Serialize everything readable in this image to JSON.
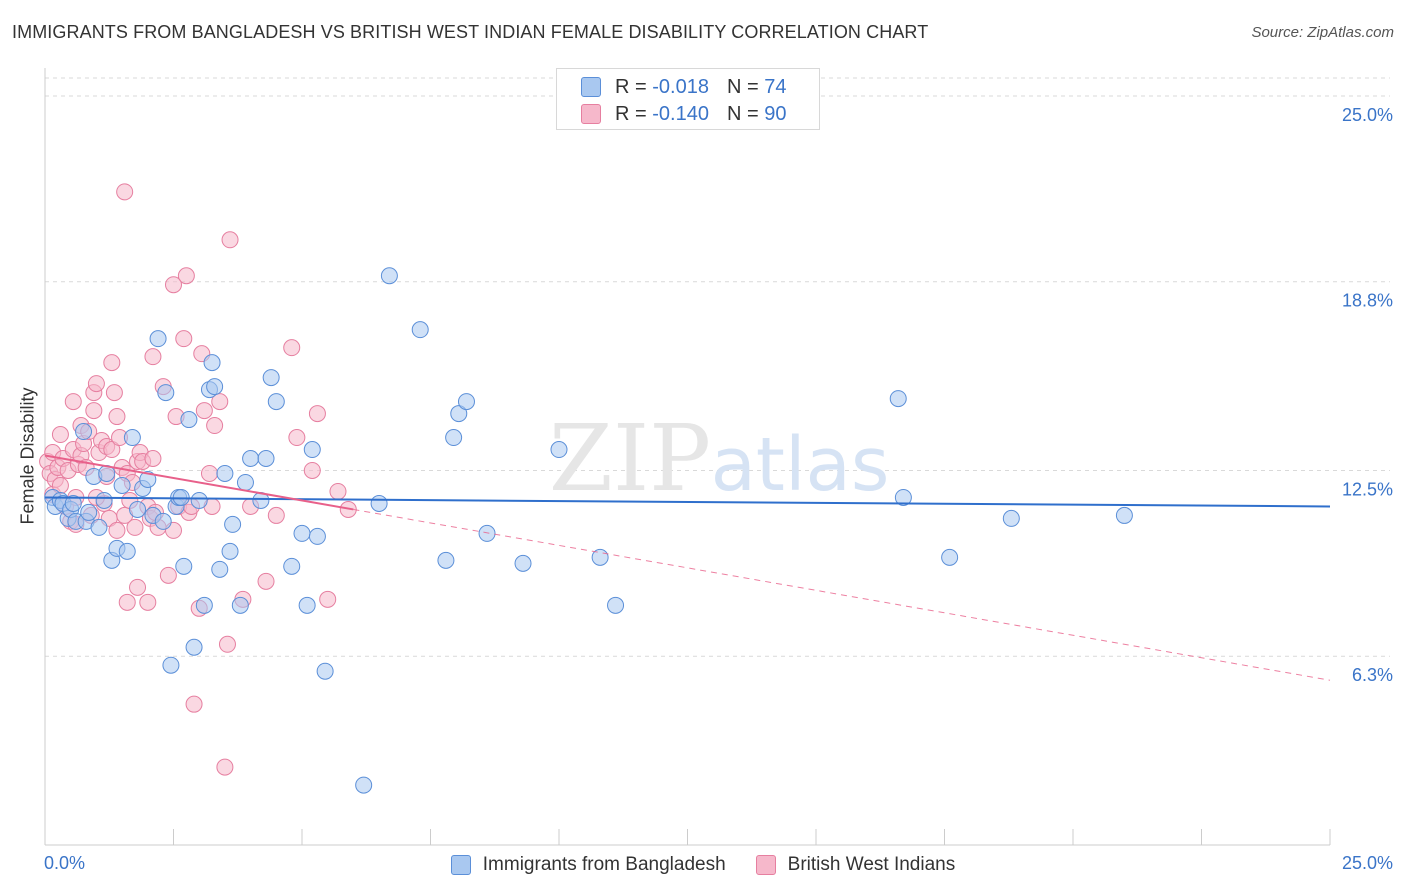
{
  "title": "IMMIGRANTS FROM BANGLADESH VS BRITISH WEST INDIAN FEMALE DISABILITY CORRELATION CHART",
  "source": "Source: ZipAtlas.com",
  "watermark": {
    "zip": "ZIP",
    "atlas": "atlas"
  },
  "colors": {
    "blue_fill": "#a9c8f0",
    "blue_stroke": "#5b8fd8",
    "blue_line": "#2f6fcc",
    "pink_fill": "#f6b8cb",
    "pink_stroke": "#e67fa0",
    "pink_line": "#e8608a",
    "axis_text": "#3a74c8",
    "grid": "#d9d9d9"
  },
  "legend": {
    "rows": [
      {
        "r_label": "R =",
        "r_value": "-0.018",
        "n_label": "N =",
        "n_value": "74"
      },
      {
        "r_label": "R =",
        "r_value": "-0.140",
        "n_label": "N =",
        "n_value": "90"
      }
    ]
  },
  "chart_data": {
    "type": "scatter",
    "xlabel": "",
    "ylabel": "Female Disability",
    "xlim": [
      0,
      25
    ],
    "ylim": [
      0,
      25.6
    ],
    "x_tick_labels": [
      "0.0%",
      "25.0%"
    ],
    "y_ticks": [
      {
        "value": 6.3,
        "label": "6.3%"
      },
      {
        "value": 12.5,
        "label": "12.5%"
      },
      {
        "value": 18.8,
        "label": "18.8%"
      },
      {
        "value": 25.0,
        "label": "25.0%"
      }
    ],
    "series": [
      {
        "name": "Immigrants from Bangladesh",
        "color": "blue",
        "r": -0.018,
        "n": 74,
        "trend": {
          "x0": 0.0,
          "y0": 11.6,
          "x1": 25.0,
          "y1": 11.3
        },
        "points": [
          [
            0.15,
            11.6
          ],
          [
            0.2,
            11.3
          ],
          [
            0.3,
            11.5
          ],
          [
            0.35,
            11.4
          ],
          [
            0.45,
            10.9
          ],
          [
            0.5,
            11.2
          ],
          [
            0.55,
            11.4
          ],
          [
            0.6,
            10.8
          ],
          [
            0.75,
            13.8
          ],
          [
            0.8,
            10.8
          ],
          [
            0.85,
            11.1
          ],
          [
            0.95,
            12.3
          ],
          [
            1.05,
            10.6
          ],
          [
            1.15,
            11.5
          ],
          [
            1.2,
            12.4
          ],
          [
            1.3,
            9.5
          ],
          [
            1.4,
            9.9
          ],
          [
            1.5,
            12.0
          ],
          [
            1.6,
            9.8
          ],
          [
            1.7,
            13.6
          ],
          [
            1.8,
            11.2
          ],
          [
            1.9,
            11.9
          ],
          [
            2.0,
            12.2
          ],
          [
            2.1,
            11.0
          ],
          [
            2.2,
            16.9
          ],
          [
            2.3,
            10.8
          ],
          [
            2.35,
            15.1
          ],
          [
            2.45,
            6.0
          ],
          [
            2.55,
            11.3
          ],
          [
            2.6,
            11.6
          ],
          [
            2.7,
            9.3
          ],
          [
            2.8,
            14.2
          ],
          [
            2.9,
            6.6
          ],
          [
            3.0,
            11.5
          ],
          [
            3.1,
            8.0
          ],
          [
            3.2,
            15.2
          ],
          [
            3.25,
            16.1
          ],
          [
            3.3,
            15.3
          ],
          [
            3.4,
            9.2
          ],
          [
            3.5,
            12.4
          ],
          [
            3.6,
            9.8
          ],
          [
            3.65,
            10.7
          ],
          [
            3.8,
            8.0
          ],
          [
            3.9,
            12.1
          ],
          [
            4.0,
            12.9
          ],
          [
            4.2,
            11.5
          ],
          [
            4.3,
            12.9
          ],
          [
            4.4,
            15.6
          ],
          [
            4.5,
            14.8
          ],
          [
            4.8,
            9.3
          ],
          [
            5.0,
            10.4
          ],
          [
            5.1,
            8.0
          ],
          [
            5.2,
            13.2
          ],
          [
            5.3,
            10.3
          ],
          [
            5.45,
            5.8
          ],
          [
            6.2,
            2.0
          ],
          [
            6.5,
            11.4
          ],
          [
            6.7,
            19.0
          ],
          [
            7.3,
            17.2
          ],
          [
            7.8,
            9.5
          ],
          [
            7.95,
            13.6
          ],
          [
            8.05,
            14.4
          ],
          [
            8.2,
            14.8
          ],
          [
            8.6,
            10.4
          ],
          [
            9.3,
            9.4
          ],
          [
            10.0,
            13.2
          ],
          [
            10.8,
            9.6
          ],
          [
            11.1,
            8.0
          ],
          [
            16.6,
            14.9
          ],
          [
            16.7,
            11.6
          ],
          [
            17.6,
            9.6
          ],
          [
            18.8,
            10.9
          ],
          [
            21.0,
            11.0
          ],
          [
            2.65,
            11.6
          ]
        ]
      },
      {
        "name": "British West Indians",
        "color": "pink",
        "r": -0.14,
        "n": 90,
        "trend": {
          "x0": 0.0,
          "y0": 13.0,
          "x1": 6.0,
          "y1": 11.2,
          "dash_x1": 25.0,
          "dash_y1": 5.5
        },
        "points": [
          [
            0.05,
            12.8
          ],
          [
            0.1,
            12.4
          ],
          [
            0.15,
            13.1
          ],
          [
            0.15,
            11.7
          ],
          [
            0.2,
            12.2
          ],
          [
            0.25,
            12.6
          ],
          [
            0.3,
            12.0
          ],
          [
            0.3,
            13.7
          ],
          [
            0.35,
            12.9
          ],
          [
            0.4,
            11.3
          ],
          [
            0.45,
            12.5
          ],
          [
            0.5,
            10.8
          ],
          [
            0.55,
            13.2
          ],
          [
            0.55,
            14.8
          ],
          [
            0.6,
            11.6
          ],
          [
            0.65,
            12.7
          ],
          [
            0.7,
            13.0
          ],
          [
            0.7,
            14.0
          ],
          [
            0.75,
            13.4
          ],
          [
            0.8,
            12.6
          ],
          [
            0.85,
            13.8
          ],
          [
            0.9,
            11.0
          ],
          [
            0.95,
            14.5
          ],
          [
            0.95,
            15.1
          ],
          [
            1.0,
            15.4
          ],
          [
            1.05,
            13.1
          ],
          [
            1.1,
            13.5
          ],
          [
            1.15,
            11.4
          ],
          [
            1.2,
            13.3
          ],
          [
            1.2,
            12.3
          ],
          [
            1.25,
            10.9
          ],
          [
            1.3,
            13.2
          ],
          [
            1.35,
            15.1
          ],
          [
            1.4,
            14.3
          ],
          [
            1.4,
            10.5
          ],
          [
            1.45,
            13.6
          ],
          [
            1.5,
            12.6
          ],
          [
            1.55,
            11.0
          ],
          [
            1.6,
            12.4
          ],
          [
            1.65,
            11.5
          ],
          [
            1.7,
            12.1
          ],
          [
            1.75,
            10.6
          ],
          [
            1.8,
            12.8
          ],
          [
            1.85,
            13.1
          ],
          [
            1.9,
            12.8
          ],
          [
            2.0,
            11.3
          ],
          [
            2.05,
            10.9
          ],
          [
            2.1,
            12.9
          ],
          [
            2.15,
            11.1
          ],
          [
            2.2,
            10.6
          ],
          [
            2.3,
            15.3
          ],
          [
            2.4,
            9.0
          ],
          [
            2.5,
            10.5
          ],
          [
            2.55,
            14.3
          ],
          [
            2.6,
            11.3
          ],
          [
            2.7,
            16.9
          ],
          [
            2.75,
            19.0
          ],
          [
            2.8,
            11.1
          ],
          [
            2.85,
            11.3
          ],
          [
            2.9,
            4.7
          ],
          [
            3.0,
            7.9
          ],
          [
            3.05,
            16.4
          ],
          [
            3.1,
            14.5
          ],
          [
            3.2,
            12.4
          ],
          [
            3.25,
            11.3
          ],
          [
            3.3,
            14.0
          ],
          [
            3.4,
            14.8
          ],
          [
            3.5,
            2.6
          ],
          [
            3.55,
            6.7
          ],
          [
            3.6,
            20.2
          ],
          [
            1.6,
            8.1
          ],
          [
            1.8,
            8.6
          ],
          [
            2.0,
            8.1
          ],
          [
            2.1,
            16.3
          ],
          [
            3.85,
            8.2
          ],
          [
            4.0,
            11.3
          ],
          [
            4.3,
            8.8
          ],
          [
            4.5,
            11.0
          ],
          [
            4.8,
            16.6
          ],
          [
            4.9,
            13.6
          ],
          [
            5.2,
            12.5
          ],
          [
            5.3,
            14.4
          ],
          [
            5.5,
            8.2
          ],
          [
            5.7,
            11.8
          ],
          [
            5.9,
            11.2
          ],
          [
            0.6,
            10.7
          ],
          [
            1.0,
            11.6
          ],
          [
            1.3,
            16.1
          ],
          [
            1.55,
            21.8
          ],
          [
            2.5,
            18.7
          ]
        ]
      }
    ]
  },
  "bottom_legend": {
    "items": [
      {
        "label": "Immigrants from Bangladesh"
      },
      {
        "label": "British West Indians"
      }
    ]
  }
}
